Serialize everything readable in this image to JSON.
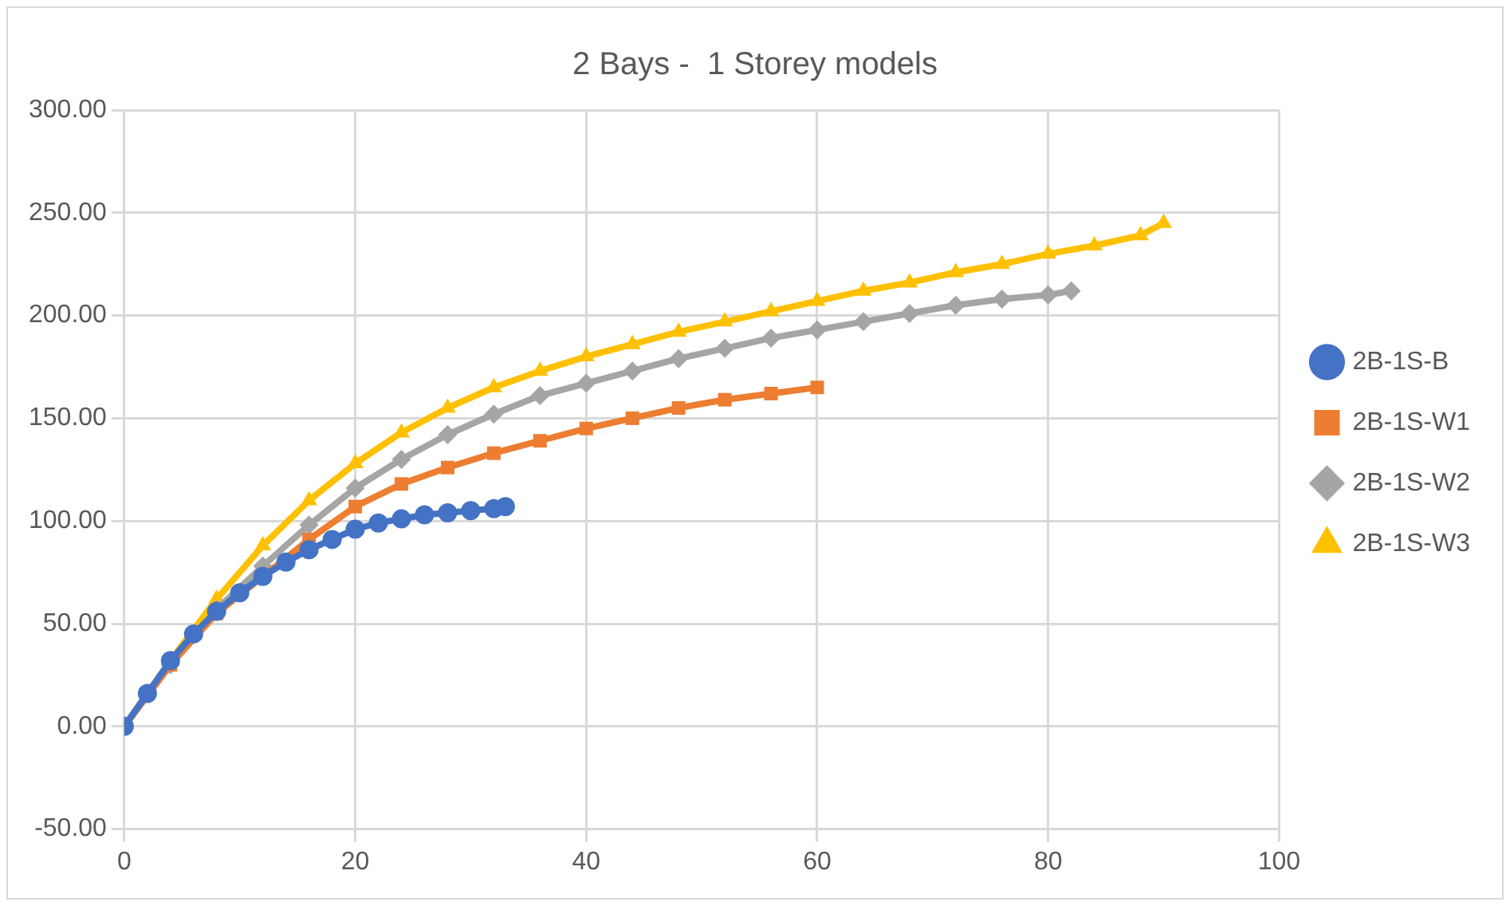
{
  "chart_data": {
    "type": "line",
    "title": "2 Bays -  1 Storey models",
    "xlim": [
      0,
      100
    ],
    "xticks": [
      0,
      20,
      40,
      60,
      80,
      100
    ],
    "ylim": [
      -50,
      300
    ],
    "yticks": [
      {
        "value": -50,
        "label": "-50.00"
      },
      {
        "value": 0,
        "label": "0.00"
      },
      {
        "value": 50,
        "label": "50.00"
      },
      {
        "value": 100,
        "label": "100.00"
      },
      {
        "value": 150,
        "label": "150.00"
      },
      {
        "value": 200,
        "label": "200.00"
      },
      {
        "value": 250,
        "label": "250.00"
      },
      {
        "value": 300,
        "label": "300.00"
      }
    ],
    "grid": true,
    "legend": "right",
    "series": [
      {
        "name": "2B-1S-B",
        "color": "#4472c4",
        "marker": "circle",
        "x": [
          0,
          2,
          4,
          6,
          8,
          10,
          12,
          14,
          16,
          18,
          20,
          22,
          24,
          26,
          28,
          30,
          32,
          33
        ],
        "values": [
          0,
          16,
          32,
          45,
          56,
          65,
          73,
          80,
          86,
          91,
          96,
          99,
          101,
          103,
          104,
          105,
          106,
          107
        ]
      },
      {
        "name": "2B-1S-W1",
        "color": "#ed7d31",
        "marker": "square",
        "x": [
          0,
          4,
          8,
          12,
          16,
          20,
          24,
          28,
          32,
          36,
          40,
          44,
          48,
          52,
          56,
          60
        ],
        "values": [
          0,
          30,
          55,
          73,
          91,
          107,
          118,
          126,
          133,
          139,
          145,
          150,
          155,
          159,
          162,
          165
        ]
      },
      {
        "name": "2B-1S-W2",
        "color": "#a5a5a5",
        "marker": "diamond",
        "x": [
          0,
          4,
          8,
          12,
          16,
          20,
          24,
          28,
          32,
          36,
          40,
          44,
          48,
          52,
          56,
          60,
          64,
          68,
          72,
          76,
          80,
          82
        ],
        "values": [
          0,
          30,
          57,
          78,
          98,
          116,
          130,
          142,
          152,
          161,
          167,
          173,
          179,
          184,
          189,
          193,
          197,
          201,
          205,
          208,
          210,
          212
        ]
      },
      {
        "name": "2B-1S-W3",
        "color": "#ffc000",
        "marker": "triangle",
        "x": [
          0,
          4,
          8,
          12,
          16,
          20,
          24,
          28,
          32,
          36,
          40,
          44,
          48,
          52,
          56,
          60,
          64,
          68,
          72,
          76,
          80,
          84,
          88,
          90
        ],
        "values": [
          0,
          32,
          62,
          88,
          110,
          128,
          143,
          155,
          165,
          173,
          180,
          186,
          192,
          197,
          202,
          207,
          212,
          216,
          221,
          225,
          230,
          234,
          239,
          245
        ]
      }
    ]
  }
}
